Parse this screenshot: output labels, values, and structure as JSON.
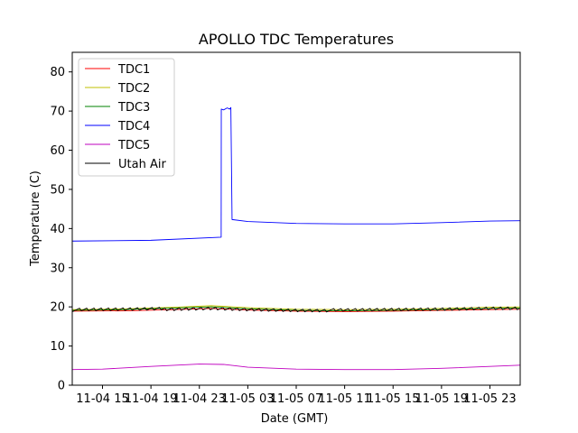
{
  "chart_data": {
    "type": "line",
    "title": "APOLLO TDC Temperatures",
    "xlabel": "Date (GMT)",
    "ylabel": "Temperature (C)",
    "ylim": [
      0,
      85
    ],
    "xlim_hours": [
      -2.5,
      34.5
    ],
    "grid": false,
    "legend_position": "top-left",
    "yticks": [
      0,
      10,
      20,
      30,
      40,
      50,
      60,
      70,
      80
    ],
    "xticks": [
      {
        "hour": 0,
        "label": "11-04 15"
      },
      {
        "hour": 4,
        "label": "11-04 19"
      },
      {
        "hour": 8,
        "label": "11-04 23"
      },
      {
        "hour": 12,
        "label": "11-05 03"
      },
      {
        "hour": 16,
        "label": "11-05 07"
      },
      {
        "hour": 20,
        "label": "11-05 11"
      },
      {
        "hour": 24,
        "label": "11-05 15"
      },
      {
        "hour": 28,
        "label": "11-05 19"
      },
      {
        "hour": 32,
        "label": "11-05 23"
      }
    ],
    "series": [
      {
        "name": "TDC1",
        "color": "#ff0000",
        "x": [
          -2.5,
          2,
          6,
          9,
          12,
          16,
          20,
          24,
          28,
          32,
          34.5
        ],
        "y": [
          18.9,
          19.0,
          19.3,
          19.6,
          19.2,
          18.9,
          18.8,
          18.9,
          19.1,
          19.3,
          19.4
        ]
      },
      {
        "name": "TDC2",
        "color": "#bfbf00",
        "x": [
          -2.5,
          2,
          6,
          9,
          12,
          16,
          20,
          24,
          28,
          32,
          34.5
        ],
        "y": [
          19.3,
          19.5,
          19.9,
          20.3,
          19.8,
          19.4,
          19.3,
          19.4,
          19.6,
          19.9,
          20.0
        ]
      },
      {
        "name": "TDC3",
        "color": "#008000",
        "x": [
          -2.5,
          2,
          6,
          9,
          12,
          16,
          20,
          24,
          28,
          32,
          34.5
        ],
        "y": [
          19.1,
          19.3,
          19.7,
          20.0,
          19.5,
          19.1,
          19.0,
          19.1,
          19.3,
          19.6,
          19.7
        ]
      },
      {
        "name": "TDC4",
        "color": "#0000ff",
        "x": [
          -2.5,
          4,
          9.8,
          9.81,
          10.0,
          10.3,
          10.5,
          10.6,
          10.7,
          12,
          16,
          20,
          24,
          28,
          32,
          34.5
        ],
        "y": [
          36.8,
          37.0,
          37.8,
          70.5,
          70.3,
          70.8,
          70.5,
          70.9,
          42.3,
          41.8,
          41.3,
          41.2,
          41.2,
          41.5,
          41.9,
          42.0
        ]
      },
      {
        "name": "TDC5",
        "color": "#bf00bf",
        "x": [
          -2.5,
          0,
          4,
          8,
          10,
          12,
          16,
          20,
          24,
          28,
          32,
          34.5
        ],
        "y": [
          4.0,
          4.1,
          4.8,
          5.4,
          5.3,
          4.6,
          4.1,
          4.0,
          4.0,
          4.3,
          4.8,
          5.1
        ]
      },
      {
        "name": "Utah Air",
        "color": "#000000",
        "x": [
          -2.5,
          2,
          6,
          9,
          12,
          16,
          20,
          24,
          28,
          32,
          34.5
        ],
        "y": [
          19.2,
          19.3,
          19.5,
          19.7,
          19.4,
          19.2,
          19.1,
          19.2,
          19.3,
          19.5,
          19.5
        ],
        "sawtooth": 0.9
      }
    ]
  }
}
